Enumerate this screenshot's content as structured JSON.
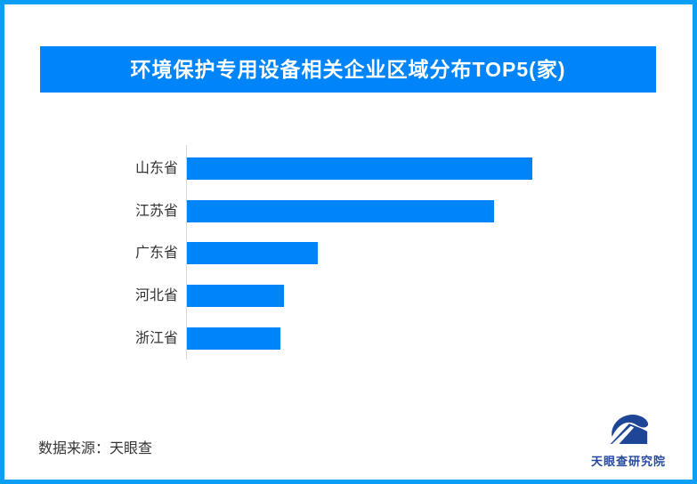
{
  "frame": {
    "border_color": "#0a9ff5",
    "background_color": "#ffffff"
  },
  "header": {
    "title": "环境保护专用设备相关企业区域分布TOP5(家)",
    "bg_color": "#0084fa",
    "text_color": "#ffffff"
  },
  "chart_data": {
    "type": "bar",
    "orientation": "horizontal",
    "title": "环境保护专用设备相关企业区域分布TOP5(家)",
    "categories": [
      "山东省",
      "江苏省",
      "广东省",
      "河北省",
      "浙江省"
    ],
    "values_pct_of_max": [
      100,
      89,
      38,
      28,
      27
    ],
    "value_labels_shown": false,
    "xlabel": "",
    "ylabel": "",
    "grid": false,
    "legend": false,
    "bar_color": "#0084fa",
    "axis_line_color": "#d9d9d9",
    "label_color": "#333333"
  },
  "footer": {
    "source_text": "数据来源：天眼查",
    "logo": {
      "icon": "tianyancha-logo",
      "text": "天眼查研究院",
      "color": "#26499d"
    }
  }
}
